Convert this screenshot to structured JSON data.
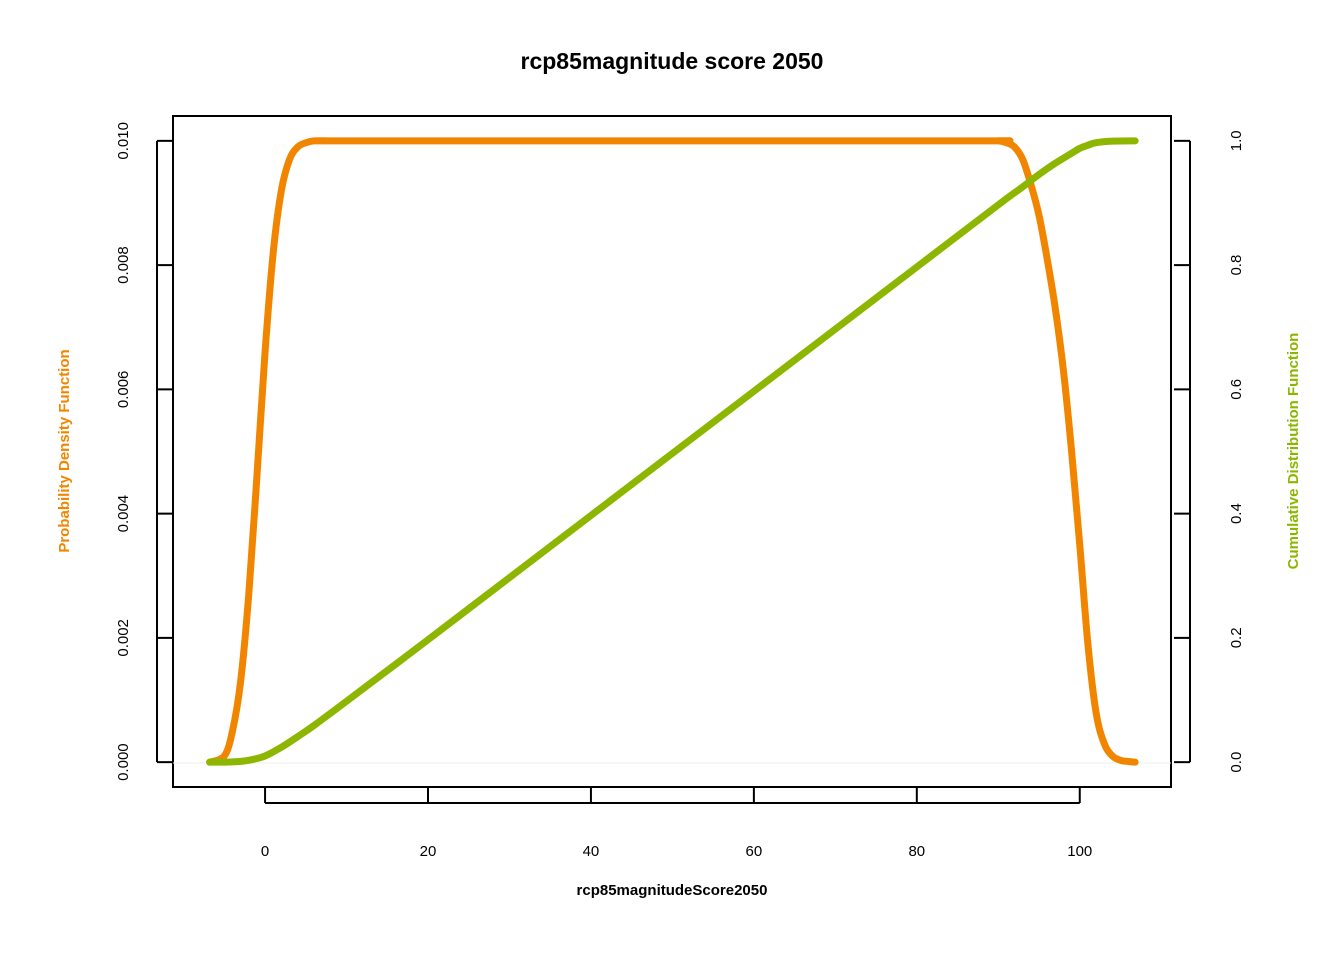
{
  "chart_data": {
    "type": "line",
    "title": "rcp85magnitude score 2050",
    "xlabel": "rcp85magnitudeScore2050",
    "ylabel_left": "Probability Density Function",
    "ylabel_right": "Cumulative Distribution Function",
    "xlim": [
      -11.3,
      111.2
    ],
    "x_ticks": [
      0,
      20,
      40,
      60,
      80,
      100
    ],
    "x_tick_labels": [
      "0",
      "20",
      "40",
      "60",
      "80",
      "100"
    ],
    "ylim_left": [
      -0.0004,
      0.0104
    ],
    "y_left_ticks": [
      0,
      0.002,
      0.004,
      0.006,
      0.008,
      0.01
    ],
    "y_left_tick_labels": [
      "0.000",
      "0.002",
      "0.004",
      "0.006",
      "0.008",
      "0.010"
    ],
    "ylim_right": [
      -0.04,
      1.04
    ],
    "y_right_ticks": [
      0,
      0.2,
      0.4,
      0.6,
      0.8,
      1.0
    ],
    "y_right_tick_labels": [
      "0.0",
      "0.2",
      "0.4",
      "0.6",
      "0.8",
      "1.0"
    ],
    "series": [
      {
        "name": "Probability Density Function",
        "axis": "left",
        "color": "#F28500",
        "x": [
          -6.8,
          -5,
          -4,
          -3,
          -2,
          -1,
          0,
          1,
          2,
          3,
          4,
          5,
          6,
          8,
          10,
          50,
          88,
          90,
          91,
          92,
          93,
          94,
          95,
          96,
          97,
          98,
          99,
          100,
          101,
          102,
          103,
          104,
          105,
          106,
          106.8
        ],
        "y": [
          0.0,
          0.0001,
          0.0005,
          0.0013,
          0.0027,
          0.0046,
          0.0066,
          0.0082,
          0.0092,
          0.0097,
          0.0099,
          0.00997,
          0.01,
          0.01,
          0.01,
          0.01,
          0.01,
          0.01,
          0.00997,
          0.0099,
          0.0097,
          0.0093,
          0.0088,
          0.0081,
          0.0073,
          0.0063,
          0.005,
          0.0035,
          0.0019,
          0.0008,
          0.0003,
          0.0001,
          3e-05,
          1e-05,
          0.0
        ]
      },
      {
        "name": "Cumulative Distribution Function",
        "axis": "right",
        "color": "#8DB600",
        "x": [
          -6.8,
          -4,
          -2,
          0,
          2,
          4,
          6,
          10,
          20,
          30,
          40,
          50,
          60,
          70,
          80,
          90,
          93,
          95,
          97,
          99,
          100,
          101,
          102,
          104,
          106.8
        ],
        "y": [
          0.0,
          0.0005,
          0.003,
          0.01,
          0.024,
          0.041,
          0.059,
          0.098,
          0.197,
          0.297,
          0.397,
          0.497,
          0.597,
          0.697,
          0.797,
          0.897,
          0.926,
          0.946,
          0.964,
          0.98,
          0.988,
          0.993,
          0.997,
          0.9995,
          1.0
        ]
      }
    ]
  }
}
